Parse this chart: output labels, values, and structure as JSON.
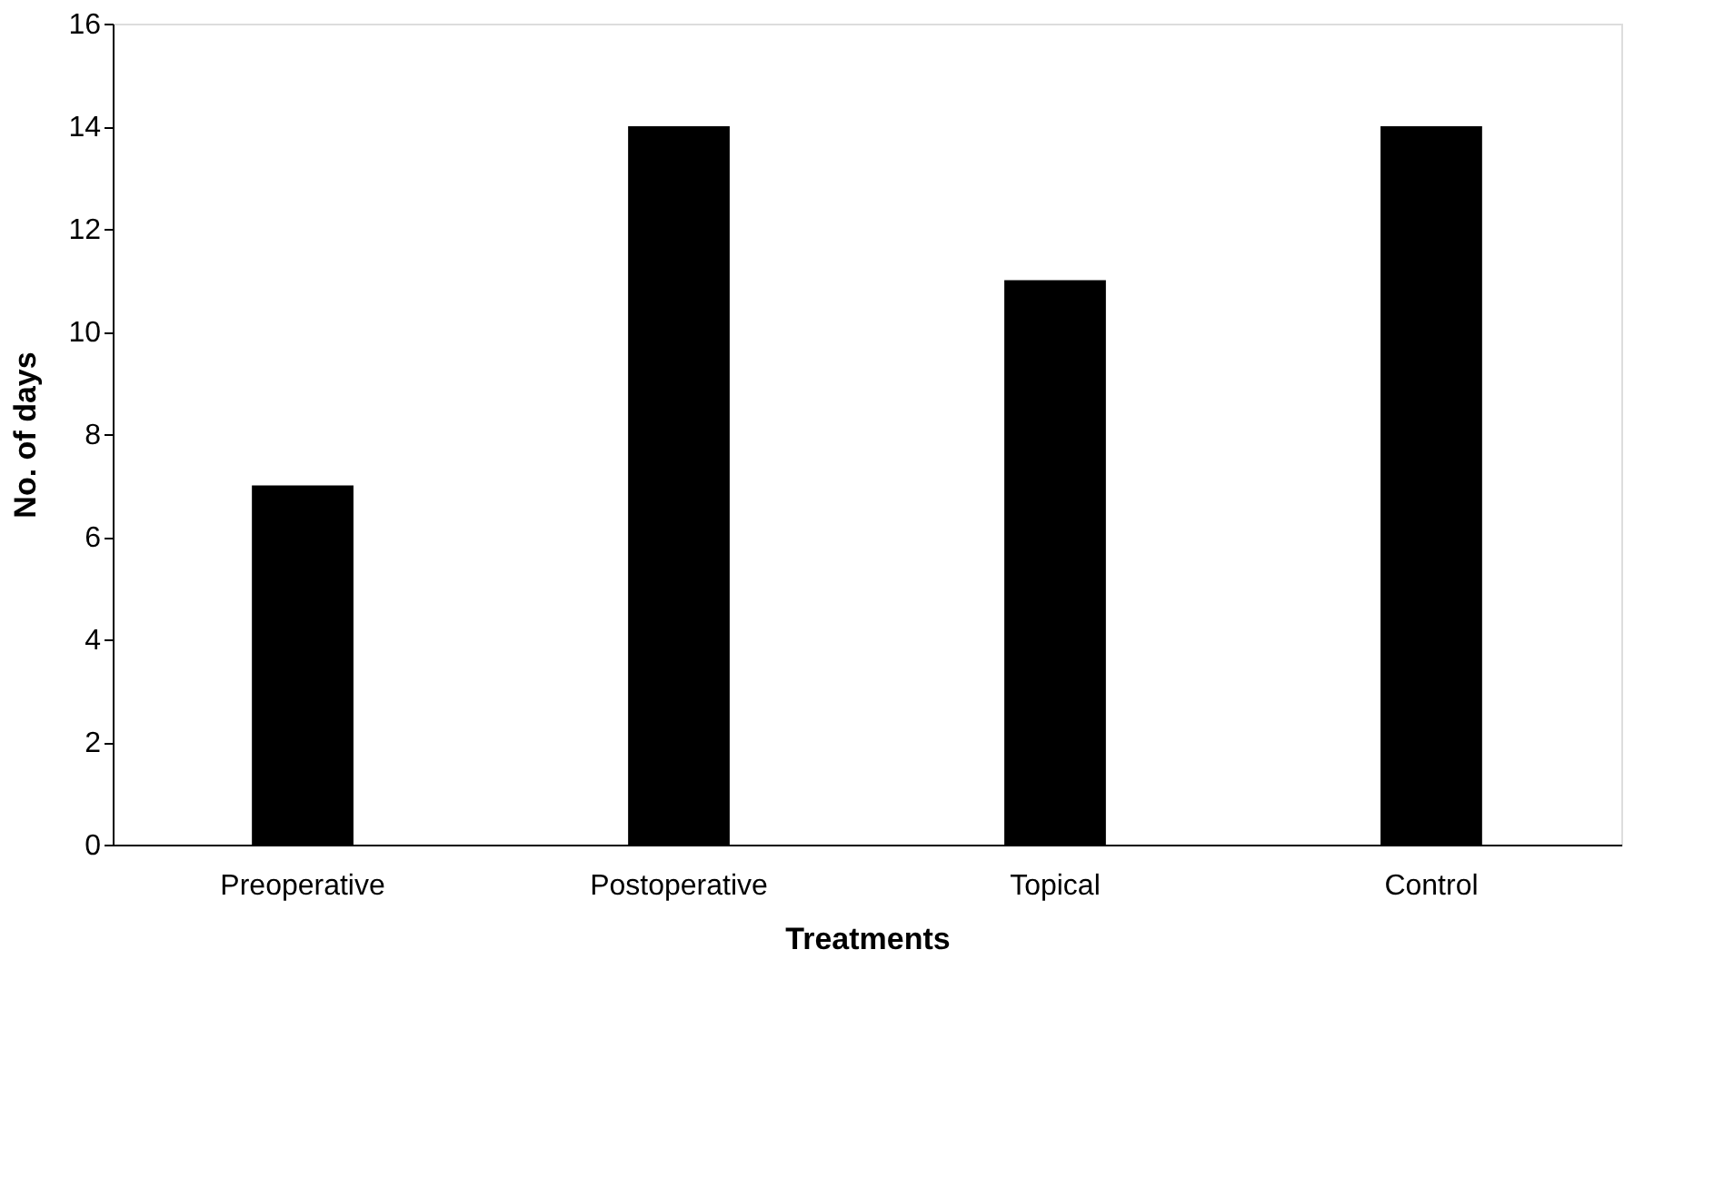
{
  "chart_data": {
    "type": "bar",
    "categories": [
      "Preoperative",
      "Postoperative",
      "Topical",
      "Control"
    ],
    "values": [
      7,
      14,
      11,
      14
    ],
    "color": "#000000",
    "xlabel": "Treatments",
    "ylabel": "No. of days",
    "ylim": [
      0,
      16
    ],
    "yticks": [
      0,
      2,
      4,
      6,
      8,
      10,
      12,
      14,
      16
    ],
    "grid": false
  }
}
